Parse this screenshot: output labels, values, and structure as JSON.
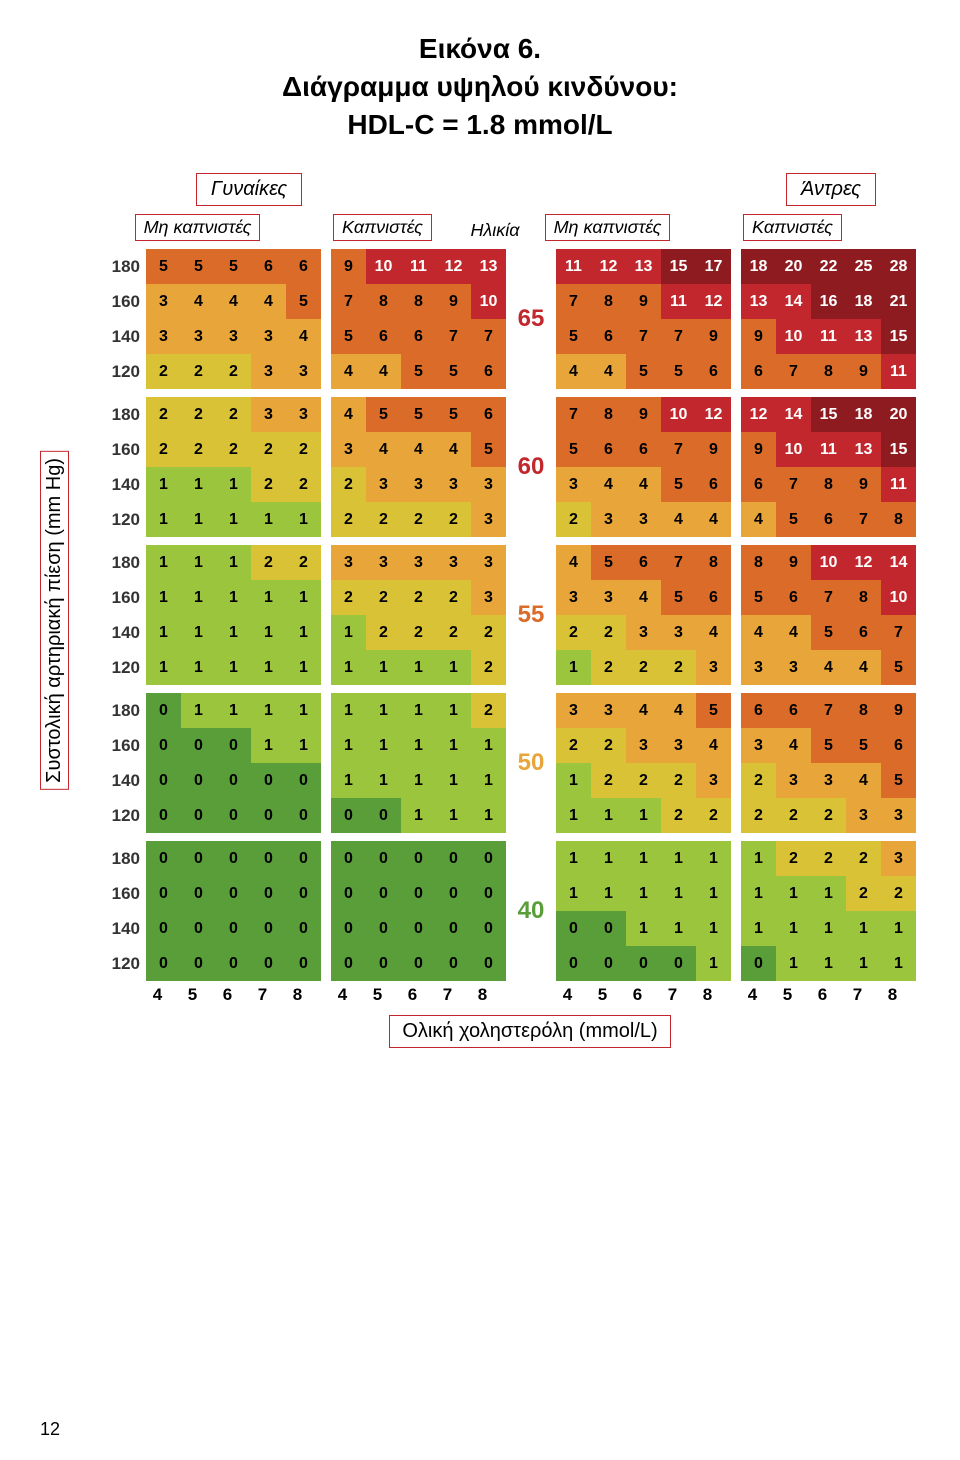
{
  "title": "Εικόνα 6.\nΔιάγραμμα υψηλού κινδύνου:\nHDL-C = 1.8 mmol/L",
  "group_women": "Γυναίκες",
  "group_men": "Άντρες",
  "col_nonsmoker": "Μη καπνιστές",
  "col_smoker": "Καπνιστές",
  "age_head": "Ηλικία",
  "yaxis": "Συστολική αρτηριακή πίεση (mm Hg)",
  "xaxis": "Ολική χοληστερόλη (mmol/L)",
  "page": "12",
  "row_labels": [
    "180",
    "160",
    "140",
    "120"
  ],
  "x_ticks": [
    "4",
    "5",
    "6",
    "7",
    "8"
  ],
  "ages": [
    "65",
    "60",
    "55",
    "50",
    "40"
  ],
  "colors": {
    "c0": "#5a9e3a",
    "c1": "#9bc53d",
    "c2": "#d9c235",
    "c3": "#e8a53a",
    "c4": "#db6b28",
    "c5": "#c1272d",
    "c6": "#8e1b20"
  },
  "text_colors": {
    "dark": "#000",
    "light": "#fff"
  },
  "age_colors": {
    "65": "#c1272d",
    "60": "#c1272d",
    "55": "#db6b28",
    "50": "#e8a53a",
    "40": "#5a9e3a"
  },
  "blocks": {
    "65": {
      "w_ns": [
        [
          5,
          5,
          5,
          6,
          6
        ],
        [
          3,
          4,
          4,
          4,
          5
        ],
        [
          3,
          3,
          3,
          3,
          4
        ],
        [
          2,
          2,
          2,
          3,
          3
        ]
      ],
      "w_s": [
        [
          9,
          10,
          11,
          12,
          13
        ],
        [
          7,
          8,
          8,
          9,
          10
        ],
        [
          5,
          6,
          6,
          7,
          7
        ],
        [
          4,
          4,
          5,
          5,
          6
        ]
      ],
      "m_ns": [
        [
          11,
          12,
          13,
          15,
          17
        ],
        [
          7,
          8,
          9,
          11,
          12
        ],
        [
          5,
          6,
          7,
          7,
          9
        ],
        [
          4,
          4,
          5,
          5,
          6
        ]
      ],
      "m_s": [
        [
          18,
          20,
          22,
          25,
          28
        ],
        [
          13,
          14,
          16,
          18,
          21
        ],
        [
          9,
          10,
          11,
          13,
          15
        ],
        [
          6,
          7,
          8,
          9,
          11
        ]
      ]
    },
    "60": {
      "w_ns": [
        [
          2,
          2,
          2,
          3,
          3
        ],
        [
          2,
          2,
          2,
          2,
          2
        ],
        [
          1,
          1,
          1,
          2,
          2
        ],
        [
          1,
          1,
          1,
          1,
          1
        ]
      ],
      "w_s": [
        [
          4,
          5,
          5,
          5,
          6
        ],
        [
          3,
          4,
          4,
          4,
          5
        ],
        [
          2,
          3,
          3,
          3,
          3
        ],
        [
          2,
          2,
          2,
          2,
          3
        ]
      ],
      "m_ns": [
        [
          7,
          8,
          9,
          10,
          12
        ],
        [
          5,
          6,
          6,
          7,
          9
        ],
        [
          3,
          4,
          4,
          5,
          6
        ],
        [
          2,
          3,
          3,
          4,
          4
        ]
      ],
      "m_s": [
        [
          12,
          14,
          15,
          18,
          20
        ],
        [
          9,
          10,
          11,
          13,
          15
        ],
        [
          6,
          7,
          8,
          9,
          11
        ],
        [
          4,
          5,
          6,
          7,
          8
        ]
      ]
    },
    "55": {
      "w_ns": [
        [
          1,
          1,
          1,
          2,
          2
        ],
        [
          1,
          1,
          1,
          1,
          1
        ],
        [
          1,
          1,
          1,
          1,
          1
        ],
        [
          1,
          1,
          1,
          1,
          1
        ]
      ],
      "w_s": [
        [
          3,
          3,
          3,
          3,
          3
        ],
        [
          2,
          2,
          2,
          2,
          3
        ],
        [
          1,
          2,
          2,
          2,
          2
        ],
        [
          1,
          1,
          1,
          1,
          2
        ]
      ],
      "m_ns": [
        [
          4,
          5,
          6,
          7,
          8
        ],
        [
          3,
          3,
          4,
          5,
          6
        ],
        [
          2,
          2,
          3,
          3,
          4
        ],
        [
          1,
          2,
          2,
          2,
          3
        ]
      ],
      "m_s": [
        [
          8,
          9,
          10,
          12,
          14
        ],
        [
          5,
          6,
          7,
          8,
          10
        ],
        [
          4,
          4,
          5,
          6,
          7
        ],
        [
          3,
          3,
          4,
          4,
          5
        ]
      ]
    },
    "50": {
      "w_ns": [
        [
          0,
          1,
          1,
          1,
          1
        ],
        [
          0,
          0,
          0,
          1,
          1
        ],
        [
          0,
          0,
          0,
          0,
          0
        ],
        [
          0,
          0,
          0,
          0,
          0
        ]
      ],
      "w_s": [
        [
          1,
          1,
          1,
          1,
          2
        ],
        [
          1,
          1,
          1,
          1,
          1
        ],
        [
          1,
          1,
          1,
          1,
          1
        ],
        [
          0,
          0,
          1,
          1,
          1
        ]
      ],
      "m_ns": [
        [
          3,
          3,
          4,
          4,
          5
        ],
        [
          2,
          2,
          3,
          3,
          4
        ],
        [
          1,
          2,
          2,
          2,
          3
        ],
        [
          1,
          1,
          1,
          2,
          2
        ]
      ],
      "m_s": [
        [
          6,
          6,
          7,
          8,
          9
        ],
        [
          3,
          4,
          5,
          5,
          6
        ],
        [
          2,
          3,
          3,
          4,
          5
        ],
        [
          2,
          2,
          2,
          3,
          3
        ]
      ]
    },
    "40": {
      "w_ns": [
        [
          0,
          0,
          0,
          0,
          0
        ],
        [
          0,
          0,
          0,
          0,
          0
        ],
        [
          0,
          0,
          0,
          0,
          0
        ],
        [
          0,
          0,
          0,
          0,
          0
        ]
      ],
      "w_s": [
        [
          0,
          0,
          0,
          0,
          0
        ],
        [
          0,
          0,
          0,
          0,
          0
        ],
        [
          0,
          0,
          0,
          0,
          0
        ],
        [
          0,
          0,
          0,
          0,
          0
        ]
      ],
      "m_ns": [
        [
          1,
          1,
          1,
          1,
          1
        ],
        [
          1,
          1,
          1,
          1,
          1
        ],
        [
          0,
          0,
          1,
          1,
          1
        ],
        [
          0,
          0,
          0,
          0,
          1
        ]
      ],
      "m_s": [
        [
          1,
          2,
          2,
          2,
          3
        ],
        [
          1,
          1,
          1,
          2,
          2
        ],
        [
          1,
          1,
          1,
          1,
          1
        ],
        [
          0,
          1,
          1,
          1,
          1
        ]
      ]
    }
  }
}
